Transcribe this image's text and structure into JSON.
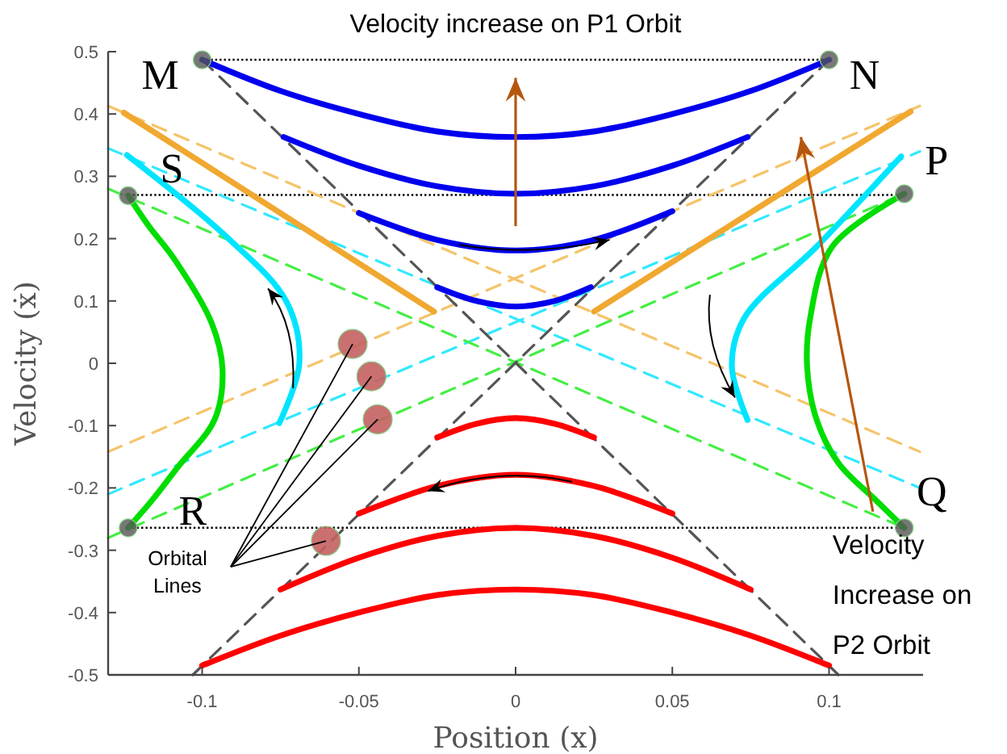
{
  "chart_data": {
    "type": "line",
    "title": "Velocity increase on P1 Orbit",
    "xlabel": "Position (x)",
    "ylabel": "Velocity (ẋ)",
    "xlim": [
      -0.13,
      0.13
    ],
    "xticks": [
      -0.1,
      -0.05,
      0,
      0.05,
      0.1
    ],
    "ylim": [
      -0.5,
      0.5
    ],
    "yticks": [
      -0.5,
      -0.4,
      -0.3,
      -0.2,
      -0.1,
      0,
      0.1,
      0.2,
      0.3,
      0.4,
      0.5
    ],
    "grid": false,
    "series": [
      {
        "line_style": "dotted",
        "color": "#000000",
        "x": [
          -0.1,
          0.1
        ],
        "values": [
          0.487,
          0.487
        ]
      },
      {
        "line_style": "dotted",
        "color": "#000000",
        "x": [
          -0.1236,
          0.124
        ],
        "values": [
          0.27,
          0.27
        ]
      },
      {
        "line_style": "dotted",
        "color": "#000000",
        "x": [
          -0.1236,
          0.124
        ],
        "values": [
          -0.264,
          -0.264
        ]
      },
      {
        "line_style": "dashed",
        "color": "#f5c46a",
        "x": [
          -0.13,
          0.129
        ],
        "values": [
          0.413,
          -0.142
        ]
      },
      {
        "line_style": "dashed",
        "color": "#f5c46a",
        "x": [
          -0.13,
          0.129
        ],
        "values": [
          -0.142,
          0.413
        ]
      },
      {
        "line_style": "dashed",
        "color": "#33e8ff",
        "x": [
          -0.13,
          0.129
        ],
        "values": [
          0.345,
          -0.2
        ]
      },
      {
        "line_style": "dashed",
        "color": "#33e8ff",
        "x": [
          -0.13,
          0.129
        ],
        "values": [
          -0.21,
          0.34
        ]
      },
      {
        "line_style": "dashed",
        "color": "#44ee44",
        "x": [
          -0.13,
          0.124
        ],
        "values": [
          0.28,
          -0.264
        ]
      },
      {
        "line_style": "dashed",
        "color": "#44ee44",
        "x": [
          -0.13,
          0.124
        ],
        "values": [
          -0.28,
          0.272
        ]
      },
      {
        "line_style": "dashed",
        "color": "#555555",
        "x": [
          -0.1,
          0.103
        ],
        "values": [
          0.487,
          -0.5
        ]
      },
      {
        "line_style": "dashed",
        "color": "#555555",
        "x": [
          -0.103,
          0.1
        ],
        "values": [
          -0.5,
          0.487
        ]
      },
      {
        "line_style": "solid",
        "color": "#0000ee",
        "x": [
          -0.1,
          -0.075,
          -0.05,
          -0.025,
          0,
          0.025,
          0.05,
          0.075,
          0.1
        ],
        "values": [
          0.487,
          0.437,
          0.4,
          0.372,
          0.363,
          0.372,
          0.4,
          0.437,
          0.487
        ]
      },
      {
        "line_style": "solid",
        "color": "#0000ee",
        "x": [
          -0.074,
          -0.05,
          -0.025,
          0,
          0.025,
          0.05,
          0.074
        ],
        "values": [
          0.363,
          0.317,
          0.284,
          0.272,
          0.284,
          0.317,
          0.363
        ]
      },
      {
        "line_style": "solid",
        "color": "#0000ee",
        "x": [
          -0.05,
          -0.025,
          0,
          0.025,
          0.05
        ],
        "values": [
          0.241,
          0.198,
          0.181,
          0.198,
          0.244
        ]
      },
      {
        "line_style": "solid",
        "color": "#0000ee",
        "x": [
          -0.025,
          -0.0125,
          0,
          0.0125,
          0.024
        ],
        "values": [
          0.122,
          0.1,
          0.091,
          0.1,
          0.122
        ]
      },
      {
        "line_style": "solid",
        "color": "#ff0000",
        "x": [
          -0.025,
          -0.0125,
          0,
          0.0125,
          0.025
        ],
        "values": [
          -0.119,
          -0.097,
          -0.088,
          -0.097,
          -0.119
        ]
      },
      {
        "line_style": "solid",
        "color": "#ff0000",
        "x": [
          -0.05,
          -0.025,
          0,
          0.025,
          0.05
        ],
        "values": [
          -0.241,
          -0.197,
          -0.179,
          -0.197,
          -0.241
        ]
      },
      {
        "line_style": "solid",
        "color": "#ff0000",
        "x": [
          -0.075,
          -0.05,
          -0.025,
          0,
          0.025,
          0.05,
          0.075
        ],
        "values": [
          -0.363,
          -0.312,
          -0.277,
          -0.264,
          -0.277,
          -0.312,
          -0.363
        ]
      },
      {
        "line_style": "solid",
        "color": "#ff0000",
        "x": [
          -0.1,
          -0.075,
          -0.05,
          -0.025,
          0,
          0.025,
          0.05,
          0.075,
          0.1
        ],
        "values": [
          -0.485,
          -0.437,
          -0.4,
          -0.372,
          -0.363,
          -0.372,
          -0.4,
          -0.437,
          -0.485
        ]
      },
      {
        "line_style": "solid",
        "color": "#f0a830",
        "x": [
          -0.125,
          -0.026
        ],
        "values": [
          0.402,
          0.083
        ]
      },
      {
        "line_style": "solid",
        "color": "#f0a830",
        "x": [
          0.025,
          0.126
        ],
        "values": [
          0.083,
          0.404
        ]
      },
      {
        "line_style": "solid",
        "color": "#00e5ff",
        "x": [
          -0.124,
          -0.092,
          -0.073,
          -0.069,
          -0.0754
        ],
        "values": [
          0.334,
          0.202,
          0.098,
          0,
          -0.096
        ]
      },
      {
        "line_style": "solid",
        "color": "#00e5ff",
        "x": [
          0.123,
          0.096,
          0.073,
          0.069,
          0.074
        ],
        "values": [
          0.332,
          0.187,
          0.073,
          -0.005,
          -0.091
        ]
      },
      {
        "line_style": "solid",
        "color": "#00dd00",
        "x": [
          -0.1236,
          -0.117,
          -0.109,
          -0.097,
          -0.0935,
          -0.096,
          -0.108,
          -0.116,
          -0.1236
        ],
        "values": [
          0.269,
          0.22,
          0.168,
          0.065,
          -0.01,
          -0.09,
          -0.168,
          -0.22,
          -0.264
        ]
      },
      {
        "line_style": "solid",
        "color": "#00dd00",
        "x": [
          0.124,
          0.101,
          0.094,
          0.093,
          0.096,
          0.103,
          0.115,
          0.124
        ],
        "values": [
          0.272,
          0.187,
          0.073,
          -0.005,
          -0.09,
          -0.16,
          -0.22,
          -0.264
        ]
      },
      {
        "type": "scatter",
        "marker": "circle",
        "color": "#555555",
        "x": [
          -0.1,
          0.1,
          -0.1236,
          0.124,
          -0.1236,
          0.124
        ],
        "values": [
          0.487,
          0.487,
          0.269,
          0.272,
          -0.264,
          -0.264
        ]
      },
      {
        "type": "scatter",
        "marker": "circle",
        "color": "#c46060",
        "x": [
          -0.052,
          -0.046,
          -0.044,
          -0.0605
        ],
        "values": [
          0.031,
          -0.021,
          -0.09,
          -0.285
        ]
      }
    ],
    "annotations": [
      {
        "text": "M",
        "x": -0.1,
        "y": 0.487
      },
      {
        "text": "N",
        "x": 0.1,
        "y": 0.487
      },
      {
        "text": "S",
        "x": -0.1236,
        "y": 0.269
      },
      {
        "text": "P",
        "x": 0.124,
        "y": 0.272
      },
      {
        "text": "R",
        "x": -0.1236,
        "y": -0.264
      },
      {
        "text": "Q",
        "x": 0.124,
        "y": -0.264
      },
      {
        "text": "Orbital Lines",
        "x": -0.0605,
        "y": -0.285
      },
      {
        "text": "Velocity Increase on P2 Orbit",
        "x": 0.114,
        "y": -0.238
      }
    ]
  }
}
